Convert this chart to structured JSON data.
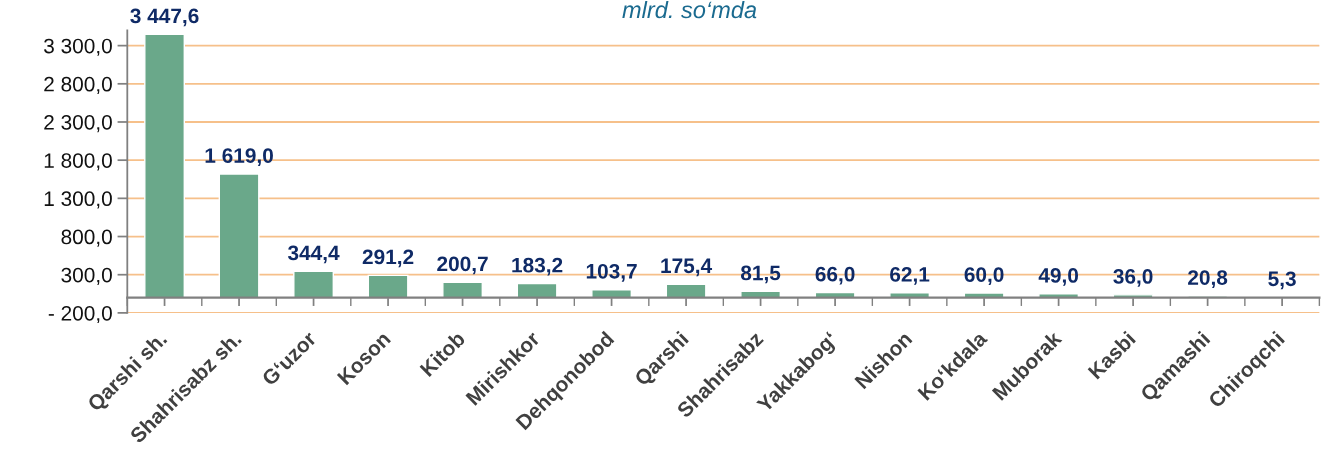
{
  "chart_data": {
    "type": "bar",
    "title": "mlrd. so‘mda",
    "categories": [
      "Qarshi sh.",
      "Shahrisabz sh.",
      "G‘uzor",
      "Koson",
      "Kitob",
      "Mirishkor",
      "Dehqonobod",
      "Qarshi",
      "Shahrisabz",
      "Yakkabog‘",
      "Nishon",
      "Ko‘kdala",
      "Muborak",
      "Kasbi",
      "Qamashi",
      "Chiroqchi"
    ],
    "values": [
      3447.6,
      1619.0,
      344.4,
      291.2,
      200.7,
      183.2,
      103.7,
      175.4,
      81.5,
      66.0,
      62.1,
      60.0,
      49.0,
      36.0,
      20.8,
      5.3
    ],
    "value_labels": [
      "3 447,6",
      "1 619,0",
      "344,4",
      "291,2",
      "200,7",
      "183,2",
      "103,7",
      "175,4",
      "81,5",
      "66,0",
      "62,1",
      "60,0",
      "49,0",
      "36,0",
      "20,8",
      "5,3"
    ],
    "color": "#6aa88a",
    "ylim": [
      -200,
      3500
    ],
    "yticks": [
      {
        "value": -200,
        "label": "- 200,0"
      },
      {
        "value": 300,
        "label": "300,0"
      },
      {
        "value": 800,
        "label": "800,0"
      },
      {
        "value": 1300,
        "label": "1 300,0"
      },
      {
        "value": 1800,
        "label": "1 800,0"
      },
      {
        "value": 2300,
        "label": "2 300,0"
      },
      {
        "value": 2800,
        "label": "2 800,0"
      },
      {
        "value": 3300,
        "label": "3 300,0"
      }
    ],
    "grid": "y"
  }
}
